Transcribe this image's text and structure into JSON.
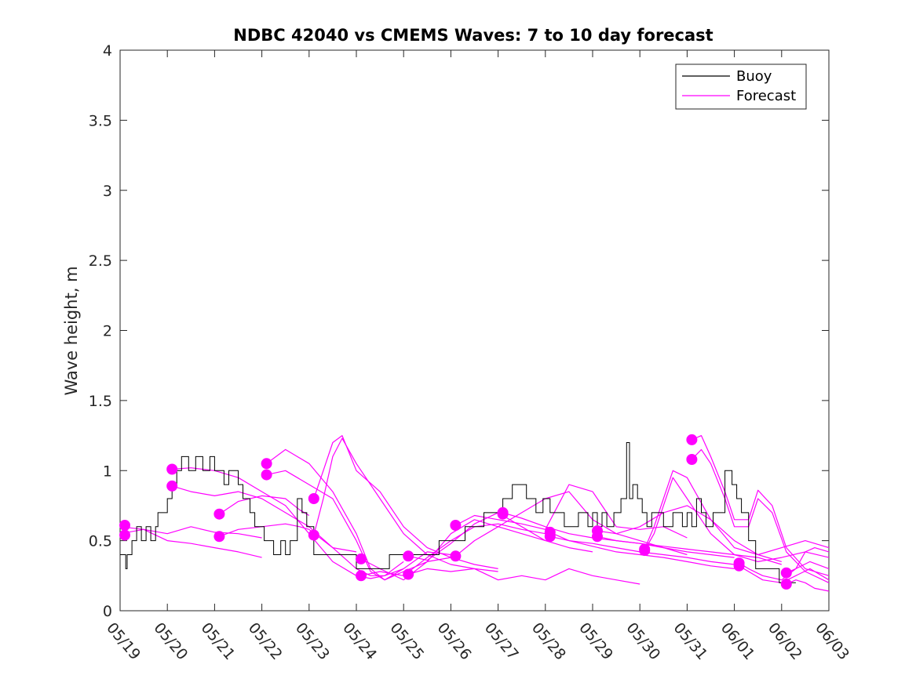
{
  "chart_data": {
    "type": "line",
    "title": "NDBC 42040 vs CMEMS Waves: 7 to 10 day forecast",
    "xlabel": "",
    "ylabel": "Wave height, m",
    "xlim": [
      0,
      15
    ],
    "ylim": [
      0,
      4
    ],
    "x_tick_labels": [
      "05/19",
      "05/20",
      "05/21",
      "05/22",
      "05/23",
      "05/24",
      "05/25",
      "05/26",
      "05/27",
      "05/28",
      "05/29",
      "05/30",
      "05/31",
      "06/01",
      "06/02",
      "06/03"
    ],
    "y_ticks": [
      0,
      0.5,
      1,
      1.5,
      2,
      2.5,
      3,
      3.5,
      4
    ],
    "y_tick_labels": [
      "0",
      "0.5",
      "1",
      "1.5",
      "2",
      "2.5",
      "3",
      "3.5",
      "4"
    ],
    "legend": {
      "position": "top-right",
      "entries": [
        "Buoy",
        "Forecast"
      ]
    },
    "colors": {
      "buoy": "#000000",
      "forecast": "#ff00ff"
    },
    "buoy": {
      "name": "Buoy",
      "x": [
        0,
        0.1,
        0.12,
        0.15,
        0.25,
        0.35,
        0.45,
        0.55,
        0.65,
        0.75,
        0.8,
        0.9,
        1.0,
        1.1,
        1.2,
        1.3,
        1.45,
        1.6,
        1.75,
        1.9,
        2.0,
        2.1,
        2.2,
        2.3,
        2.5,
        2.6,
        2.75,
        2.85,
        2.95,
        3.05,
        3.15,
        3.25,
        3.4,
        3.5,
        3.6,
        3.75,
        3.85,
        3.95,
        4.1,
        4.25,
        4.5,
        4.75,
        5.0,
        5.3,
        5.5,
        5.7,
        5.85,
        6.0,
        6.1,
        6.2,
        6.35,
        6.45,
        6.55,
        6.75,
        6.95,
        7.15,
        7.3,
        7.5,
        7.7,
        7.9,
        8.1,
        8.3,
        8.45,
        8.6,
        8.8,
        8.95,
        9.1,
        9.25,
        9.4,
        9.55,
        9.7,
        9.8,
        9.9,
        10.0,
        10.1,
        10.2,
        10.3,
        10.45,
        10.6,
        10.72,
        10.78,
        10.85,
        10.95,
        11.05,
        11.15,
        11.25,
        11.35,
        11.5,
        11.7,
        11.9,
        12.0,
        12.1,
        12.2,
        12.3,
        12.4,
        12.55,
        12.7,
        12.8,
        12.95,
        13.05,
        13.15,
        13.3,
        13.45,
        13.6,
        13.75,
        13.95,
        14.1,
        14.3
      ],
      "values": [
        0.4,
        0.4,
        0.3,
        0.4,
        0.5,
        0.6,
        0.5,
        0.6,
        0.5,
        0.6,
        0.7,
        0.7,
        0.8,
        0.9,
        1.0,
        1.1,
        1.0,
        1.1,
        1.0,
        1.1,
        1.0,
        1.0,
        0.9,
        1.0,
        0.9,
        0.8,
        0.7,
        0.6,
        0.6,
        0.5,
        0.5,
        0.4,
        0.5,
        0.4,
        0.5,
        0.8,
        0.7,
        0.6,
        0.4,
        0.4,
        0.4,
        0.4,
        0.3,
        0.3,
        0.3,
        0.4,
        0.4,
        0.4,
        0.4,
        0.4,
        0.4,
        0.4,
        0.4,
        0.5,
        0.5,
        0.5,
        0.6,
        0.6,
        0.7,
        0.7,
        0.8,
        0.9,
        0.9,
        0.8,
        0.7,
        0.8,
        0.7,
        0.7,
        0.6,
        0.6,
        0.7,
        0.7,
        0.6,
        0.7,
        0.6,
        0.7,
        0.6,
        0.7,
        0.8,
        1.2,
        0.8,
        0.9,
        0.8,
        0.7,
        0.6,
        0.7,
        0.7,
        0.6,
        0.7,
        0.6,
        0.7,
        0.6,
        0.8,
        0.7,
        0.6,
        0.7,
        0.7,
        1.0,
        0.9,
        0.8,
        0.7,
        0.5,
        0.3,
        0.3,
        0.3,
        0.2,
        0.2,
        0.2
      ]
    },
    "forecast_series": [
      {
        "x": [
          0,
          0.5,
          1.0,
          1.5,
          2.0,
          2.5,
          3.0
        ],
        "values": [
          0.6,
          0.58,
          0.5,
          0.48,
          0.45,
          0.42,
          0.38
        ]
      },
      {
        "x": [
          0,
          0.5,
          1.0,
          1.5,
          2.0,
          2.5,
          3.0
        ],
        "values": [
          0.55,
          0.58,
          0.55,
          0.6,
          0.56,
          0.55,
          0.52
        ]
      },
      {
        "x": [
          1.1,
          1.5,
          2.0,
          2.5,
          3.0,
          3.5,
          4.0,
          4.5,
          5.0,
          5.3,
          5.6,
          6.0
        ],
        "values": [
          1.01,
          1.02,
          1.0,
          0.95,
          0.85,
          0.75,
          0.55,
          0.35,
          0.25,
          0.23,
          0.25,
          0.35
        ]
      },
      {
        "x": [
          1.1,
          1.5,
          2.0,
          2.5,
          3.0,
          3.5,
          4.0,
          4.5,
          5.0,
          5.3,
          5.6,
          6.0
        ],
        "values": [
          0.89,
          0.85,
          0.82,
          0.85,
          0.8,
          0.7,
          0.6,
          0.45,
          0.3,
          0.25,
          0.25,
          0.3
        ]
      },
      {
        "x": [
          2.1,
          2.5,
          3.0,
          3.5,
          3.8,
          4.0
        ],
        "values": [
          0.69,
          0.78,
          0.82,
          0.8,
          0.72,
          0.68
        ]
      },
      {
        "x": [
          2.1,
          2.5,
          3.0,
          3.5,
          3.8,
          4.0,
          4.5,
          5.0
        ],
        "values": [
          0.53,
          0.58,
          0.6,
          0.62,
          0.6,
          0.58,
          0.45,
          0.42
        ]
      },
      {
        "x": [
          3.1,
          3.5,
          4.0,
          4.5,
          5.0,
          5.3,
          5.6,
          6.0,
          6.5,
          7.0
        ],
        "values": [
          1.05,
          1.15,
          1.05,
          0.85,
          0.55,
          0.3,
          0.22,
          0.3,
          0.42,
          0.4
        ]
      },
      {
        "x": [
          3.1,
          3.5,
          4.0,
          4.5,
          5.0,
          5.3,
          5.6,
          6.0,
          6.5,
          7.0
        ],
        "values": [
          0.97,
          1.0,
          0.9,
          0.8,
          0.5,
          0.28,
          0.22,
          0.28,
          0.35,
          0.38
        ]
      },
      {
        "x": [
          4.1,
          4.3,
          4.5,
          4.7,
          5.0,
          5.5,
          6.0,
          6.5,
          7.0,
          7.5,
          8.0
        ],
        "values": [
          0.8,
          1.0,
          1.2,
          1.25,
          1.0,
          0.85,
          0.6,
          0.45,
          0.38,
          0.33,
          0.3
        ]
      },
      {
        "x": [
          4.1,
          4.3,
          4.5,
          4.7,
          5.0,
          5.5,
          6.0,
          6.5,
          7.0,
          7.5,
          8.0
        ],
        "values": [
          0.54,
          0.8,
          1.1,
          1.23,
          1.05,
          0.8,
          0.55,
          0.4,
          0.33,
          0.3,
          0.28
        ]
      },
      {
        "x": [
          5.1,
          5.5,
          6.0,
          6.5,
          7.0,
          7.5,
          8.0,
          8.5,
          9.0
        ],
        "values": [
          0.37,
          0.3,
          0.22,
          0.35,
          0.55,
          0.65,
          0.6,
          0.55,
          0.5
        ]
      },
      {
        "x": [
          5.1,
          5.5,
          6.0,
          6.5,
          7.0,
          7.5,
          8.0,
          8.5,
          9.0
        ],
        "values": [
          0.25,
          0.28,
          0.25,
          0.38,
          0.5,
          0.6,
          0.62,
          0.58,
          0.55
        ]
      },
      {
        "x": [
          6.1,
          6.5,
          7.0,
          7.5,
          8.0,
          8.5,
          9.0,
          9.5,
          10.0
        ],
        "values": [
          0.39,
          0.36,
          0.48,
          0.62,
          0.7,
          0.6,
          0.5,
          0.45,
          0.42
        ]
      },
      {
        "x": [
          6.1,
          6.5,
          7.0,
          7.5,
          8.0,
          8.5,
          9.0,
          9.5,
          10.0,
          10.5,
          11.0
        ],
        "values": [
          0.26,
          0.3,
          0.28,
          0.3,
          0.22,
          0.25,
          0.22,
          0.3,
          0.25,
          0.22,
          0.19
        ]
      },
      {
        "x": [
          7.1,
          7.5,
          8.0,
          8.5,
          9.0,
          9.5,
          10.0,
          10.5,
          11.0,
          11.5,
          12.0
        ],
        "values": [
          0.61,
          0.68,
          0.65,
          0.62,
          0.58,
          0.9,
          0.85,
          0.6,
          0.58,
          0.6,
          0.52
        ]
      },
      {
        "x": [
          7.1,
          7.5,
          8.0,
          8.5,
          9.0,
          9.5,
          10.0,
          10.5,
          11.0,
          11.5,
          12.0
        ],
        "values": [
          0.39,
          0.5,
          0.6,
          0.7,
          0.8,
          0.85,
          0.65,
          0.55,
          0.5,
          0.45,
          0.4
        ]
      },
      {
        "x": [
          8.1,
          8.5,
          9.0,
          9.5,
          10.0,
          10.5,
          11.0,
          11.5,
          12.0,
          12.5,
          13.0
        ],
        "values": [
          0.7,
          0.66,
          0.6,
          0.55,
          0.52,
          0.5,
          0.48,
          0.45,
          0.42,
          0.4,
          0.38
        ]
      },
      {
        "x": [
          9.1,
          9.5,
          10.0,
          10.5,
          11.0,
          11.5,
          12.0,
          12.5,
          13.0
        ],
        "values": [
          0.56,
          0.5,
          0.48,
          0.45,
          0.42,
          0.4,
          0.38,
          0.35,
          0.33
        ]
      },
      {
        "x": [
          9.1,
          9.5,
          10.0,
          10.5,
          11.0,
          11.5,
          12.0,
          12.5,
          13.0
        ],
        "values": [
          0.53,
          0.5,
          0.46,
          0.42,
          0.4,
          0.38,
          0.35,
          0.32,
          0.3
        ]
      },
      {
        "x": [
          10.1,
          10.5,
          11.0,
          11.5,
          12.0,
          12.5,
          13.0,
          13.5,
          14.0
        ],
        "values": [
          0.57,
          0.55,
          0.6,
          0.7,
          0.75,
          0.65,
          0.5,
          0.4,
          0.35
        ]
      },
      {
        "x": [
          10.1,
          10.5,
          11.0,
          11.5,
          12.0,
          12.5,
          13.0,
          13.5,
          14.0
        ],
        "values": [
          0.53,
          0.5,
          0.48,
          0.46,
          0.44,
          0.42,
          0.4,
          0.38,
          0.33
        ]
      },
      {
        "x": [
          11.1,
          11.3,
          11.5,
          11.7,
          12.0,
          12.5,
          13.0,
          13.5,
          14.0,
          14.5,
          15.0
        ],
        "values": [
          0.44,
          0.6,
          0.8,
          1.0,
          0.95,
          0.65,
          0.45,
          0.4,
          0.45,
          0.5,
          0.45
        ]
      },
      {
        "x": [
          11.1,
          11.3,
          11.5,
          11.7,
          12.0,
          12.5,
          13.0,
          13.5,
          14.0,
          14.5,
          15.0
        ],
        "values": [
          0.43,
          0.55,
          0.75,
          0.95,
          0.8,
          0.55,
          0.4,
          0.35,
          0.38,
          0.42,
          0.38
        ]
      },
      {
        "x": [
          12.1,
          12.3,
          12.5,
          12.8,
          13.0,
          13.3,
          13.5,
          13.8,
          14.1,
          14.5,
          15.0
        ],
        "values": [
          1.22,
          1.25,
          1.1,
          0.85,
          0.65,
          0.65,
          0.86,
          0.75,
          0.45,
          0.3,
          0.25
        ]
      },
      {
        "x": [
          12.1,
          12.3,
          12.5,
          12.8,
          13.0,
          13.3,
          13.5,
          13.8,
          14.1,
          14.5,
          15.0
        ],
        "values": [
          1.08,
          1.15,
          1.05,
          0.8,
          0.6,
          0.6,
          0.8,
          0.7,
          0.42,
          0.28,
          0.2
        ]
      },
      {
        "x": [
          13.1,
          13.3,
          13.6,
          14.0,
          14.3,
          14.6,
          15.0
        ],
        "values": [
          0.34,
          0.3,
          0.25,
          0.22,
          0.3,
          0.35,
          0.3
        ]
      },
      {
        "x": [
          13.1,
          13.3,
          13.6,
          14.0,
          14.3,
          14.6,
          15.0
        ],
        "values": [
          0.32,
          0.28,
          0.22,
          0.2,
          0.25,
          0.3,
          0.22
        ]
      },
      {
        "x": [
          14.1,
          14.3,
          14.5,
          14.7,
          15.0
        ],
        "values": [
          0.27,
          0.3,
          0.42,
          0.45,
          0.42
        ]
      },
      {
        "x": [
          14.1,
          14.3,
          14.5,
          14.7,
          15.0
        ],
        "values": [
          0.19,
          0.22,
          0.2,
          0.16,
          0.14
        ]
      }
    ],
    "forecast_init_markers": [
      {
        "x": 0.1,
        "y": 0.61
      },
      {
        "x": 0.1,
        "y": 0.54
      },
      {
        "x": 1.1,
        "y": 1.01
      },
      {
        "x": 1.1,
        "y": 0.89
      },
      {
        "x": 2.1,
        "y": 0.69
      },
      {
        "x": 2.1,
        "y": 0.53
      },
      {
        "x": 3.1,
        "y": 1.05
      },
      {
        "x": 3.1,
        "y": 0.97
      },
      {
        "x": 4.1,
        "y": 0.8
      },
      {
        "x": 4.1,
        "y": 0.54
      },
      {
        "x": 5.1,
        "y": 0.37
      },
      {
        "x": 5.1,
        "y": 0.25
      },
      {
        "x": 6.1,
        "y": 0.39
      },
      {
        "x": 6.1,
        "y": 0.26
      },
      {
        "x": 7.1,
        "y": 0.61
      },
      {
        "x": 7.1,
        "y": 0.39
      },
      {
        "x": 8.1,
        "y": 0.7
      },
      {
        "x": 8.1,
        "y": 0.69
      },
      {
        "x": 9.1,
        "y": 0.56
      },
      {
        "x": 9.1,
        "y": 0.53
      },
      {
        "x": 10.1,
        "y": 0.57
      },
      {
        "x": 10.1,
        "y": 0.53
      },
      {
        "x": 11.1,
        "y": 0.44
      },
      {
        "x": 11.1,
        "y": 0.43
      },
      {
        "x": 12.1,
        "y": 1.22
      },
      {
        "x": 12.1,
        "y": 1.08
      },
      {
        "x": 13.1,
        "y": 0.34
      },
      {
        "x": 13.1,
        "y": 0.32
      },
      {
        "x": 14.1,
        "y": 0.27
      },
      {
        "x": 14.1,
        "y": 0.19
      }
    ]
  }
}
